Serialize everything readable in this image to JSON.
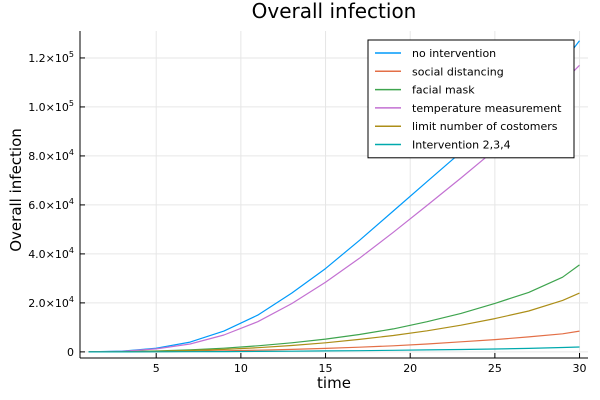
{
  "chart_data": {
    "type": "line",
    "title": "Overall infection",
    "xlabel": "time",
    "ylabel": "Overall infection",
    "xlim": [
      0.5,
      30.5
    ],
    "ylim": [
      -2500,
      131000
    ],
    "xticks": [
      5,
      10,
      15,
      20,
      25,
      30
    ],
    "xtick_labels": [
      "5",
      "10",
      "15",
      "20",
      "25",
      "30"
    ],
    "yticks": [
      0,
      20000,
      40000,
      60000,
      80000,
      100000,
      120000
    ],
    "ytick_labels": [
      {
        "mantissa": "0",
        "exp": ""
      },
      {
        "mantissa": "2.0×10",
        "exp": "4"
      },
      {
        "mantissa": "4.0×10",
        "exp": "4"
      },
      {
        "mantissa": "6.0×10",
        "exp": "4"
      },
      {
        "mantissa": "8.0×10",
        "exp": "4"
      },
      {
        "mantissa": "1.0×10",
        "exp": "5"
      },
      {
        "mantissa": "1.2×10",
        "exp": "5"
      }
    ],
    "grid": true,
    "legend_position": "top-right",
    "x": [
      1,
      3,
      5,
      7,
      9,
      11,
      13,
      15,
      17,
      19,
      21,
      23,
      25,
      27,
      29,
      30
    ],
    "series": [
      {
        "name": "no intervention",
        "color": "#009AFA",
        "values": [
          0,
          300,
          1500,
          4000,
          8500,
          15000,
          24000,
          34000,
          45500,
          57500,
          69500,
          81500,
          93500,
          105000,
          118000,
          127000
        ]
      },
      {
        "name": "social distancing",
        "color": "#E36F47",
        "values": [
          0,
          30,
          100,
          250,
          450,
          700,
          1000,
          1400,
          1900,
          2500,
          3200,
          4100,
          5000,
          6100,
          7400,
          8500
        ]
      },
      {
        "name": "facial mask",
        "color": "#3EA44E",
        "values": [
          0,
          100,
          350,
          800,
          1500,
          2500,
          3700,
          5200,
          7100,
          9400,
          12300,
          15700,
          19800,
          24300,
          30500,
          35500
        ]
      },
      {
        "name": "temperature measurement",
        "color": "#C371D2",
        "values": [
          0,
          250,
          1200,
          3200,
          6900,
          12300,
          19700,
          28400,
          38200,
          48800,
          59800,
          71000,
          82500,
          95000,
          110000,
          117000
        ]
      },
      {
        "name": "limit number of costomers",
        "color": "#AC8E18",
        "values": [
          0,
          80,
          250,
          550,
          1000,
          1700,
          2600,
          3700,
          5100,
          6700,
          8600,
          10900,
          13600,
          16700,
          21000,
          24000
        ]
      },
      {
        "name": "Intervention 2,3,4",
        "color": "#00A9AD",
        "values": [
          0,
          10,
          30,
          70,
          120,
          190,
          280,
          380,
          500,
          640,
          800,
          980,
          1180,
          1400,
          1800,
          2000
        ]
      }
    ]
  }
}
